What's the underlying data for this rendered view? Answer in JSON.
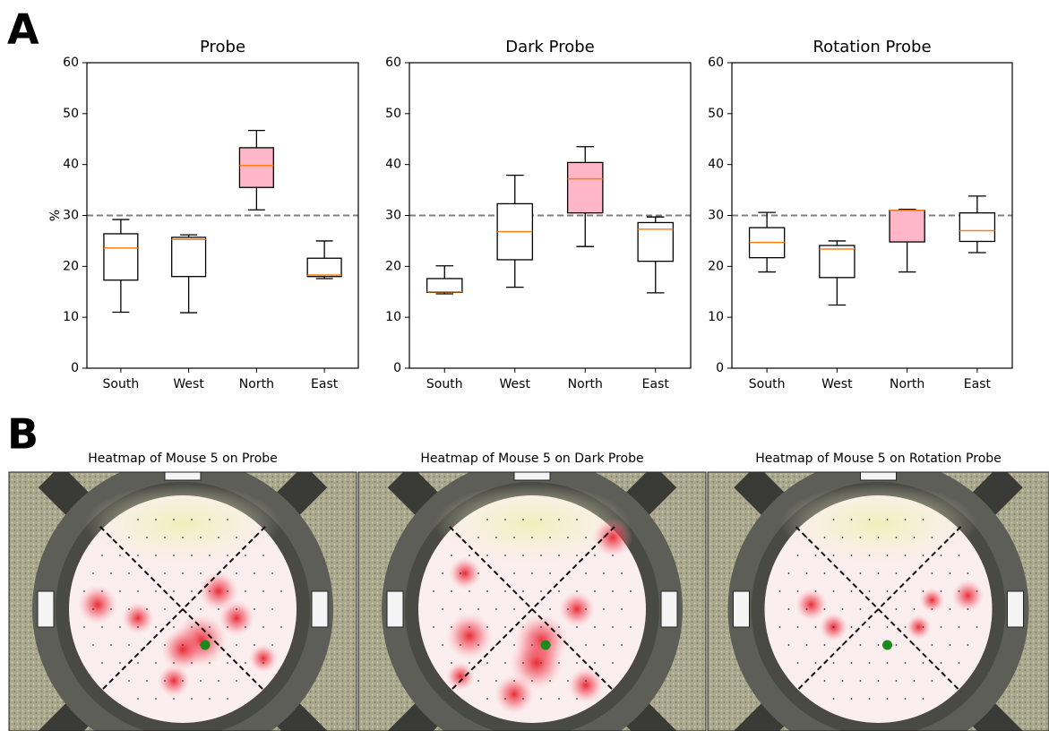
{
  "panel_labels": [
    "A",
    "B"
  ],
  "chart_data": [
    {
      "type": "box",
      "title": "Probe",
      "ylabel": "%",
      "categories": [
        "South",
        "West",
        "North",
        "East"
      ],
      "boxes": [
        {
          "whislo": 11.0,
          "q1": 17.3,
          "med": 23.6,
          "q3": 26.4,
          "whishi": 29.2
        },
        {
          "whislo": 10.9,
          "q1": 18.0,
          "med": 25.3,
          "q3": 25.7,
          "whishi": 26.2
        },
        {
          "whislo": 31.1,
          "q1": 35.5,
          "med": 39.8,
          "q3": 43.3,
          "whishi": 46.7
        },
        {
          "whislo": 17.6,
          "q1": 18.0,
          "med": 18.3,
          "q3": 21.6,
          "whishi": 25.0
        }
      ],
      "colors": [
        "#ffffff",
        "#ffffff",
        "#ffb6c8",
        "#ffffff"
      ],
      "median_color": "#ff7f0e",
      "hline": 30,
      "ylim": [
        0,
        60
      ],
      "yticks": [
        0,
        10,
        20,
        30,
        40,
        50,
        60
      ]
    },
    {
      "type": "box",
      "title": "Dark Probe",
      "categories": [
        "South",
        "West",
        "North",
        "East"
      ],
      "boxes": [
        {
          "whislo": 14.6,
          "q1": 14.9,
          "med": 15.0,
          "q3": 17.6,
          "whishi": 20.1
        },
        {
          "whislo": 15.9,
          "q1": 21.3,
          "med": 26.8,
          "q3": 32.3,
          "whishi": 37.9
        },
        {
          "whislo": 23.9,
          "q1": 30.5,
          "med": 37.2,
          "q3": 40.4,
          "whishi": 43.5
        },
        {
          "whislo": 14.8,
          "q1": 21.0,
          "med": 27.3,
          "q3": 28.6,
          "whishi": 29.7
        }
      ],
      "colors": [
        "#ffffff",
        "#ffffff",
        "#ffb6c8",
        "#ffffff"
      ],
      "median_color": "#ff7f0e",
      "hline": 30,
      "ylim": [
        0,
        60
      ],
      "yticks": [
        0,
        10,
        20,
        30,
        40,
        50,
        60
      ]
    },
    {
      "type": "box",
      "title": "Rotation Probe",
      "categories": [
        "South",
        "West",
        "North",
        "East"
      ],
      "boxes": [
        {
          "whislo": 18.9,
          "q1": 21.7,
          "med": 24.7,
          "q3": 27.6,
          "whishi": 30.6
        },
        {
          "whislo": 12.4,
          "q1": 17.8,
          "med": 23.4,
          "q3": 24.1,
          "whishi": 25.0
        },
        {
          "whislo": 18.9,
          "q1": 24.8,
          "med": 31.0,
          "q3": 31.0,
          "whishi": 31.2
        },
        {
          "whislo": 22.7,
          "q1": 24.9,
          "med": 27.0,
          "q3": 30.5,
          "whishi": 33.8
        }
      ],
      "colors": [
        "#ffffff",
        "#ffffff",
        "#ffb6c8",
        "#ffffff"
      ],
      "median_color": "#ff7f0e",
      "hline": 30,
      "ylim": [
        0,
        60
      ],
      "yticks": [
        0,
        10,
        20,
        30,
        40,
        50,
        60
      ]
    }
  ],
  "heatmaps": [
    {
      "title": "Heatmap of Mouse 5 on Probe"
    },
    {
      "title": "Heatmap of Mouse 5 on Dark Probe"
    },
    {
      "title": "Heatmap of Mouse 5 on Rotation Probe"
    }
  ]
}
